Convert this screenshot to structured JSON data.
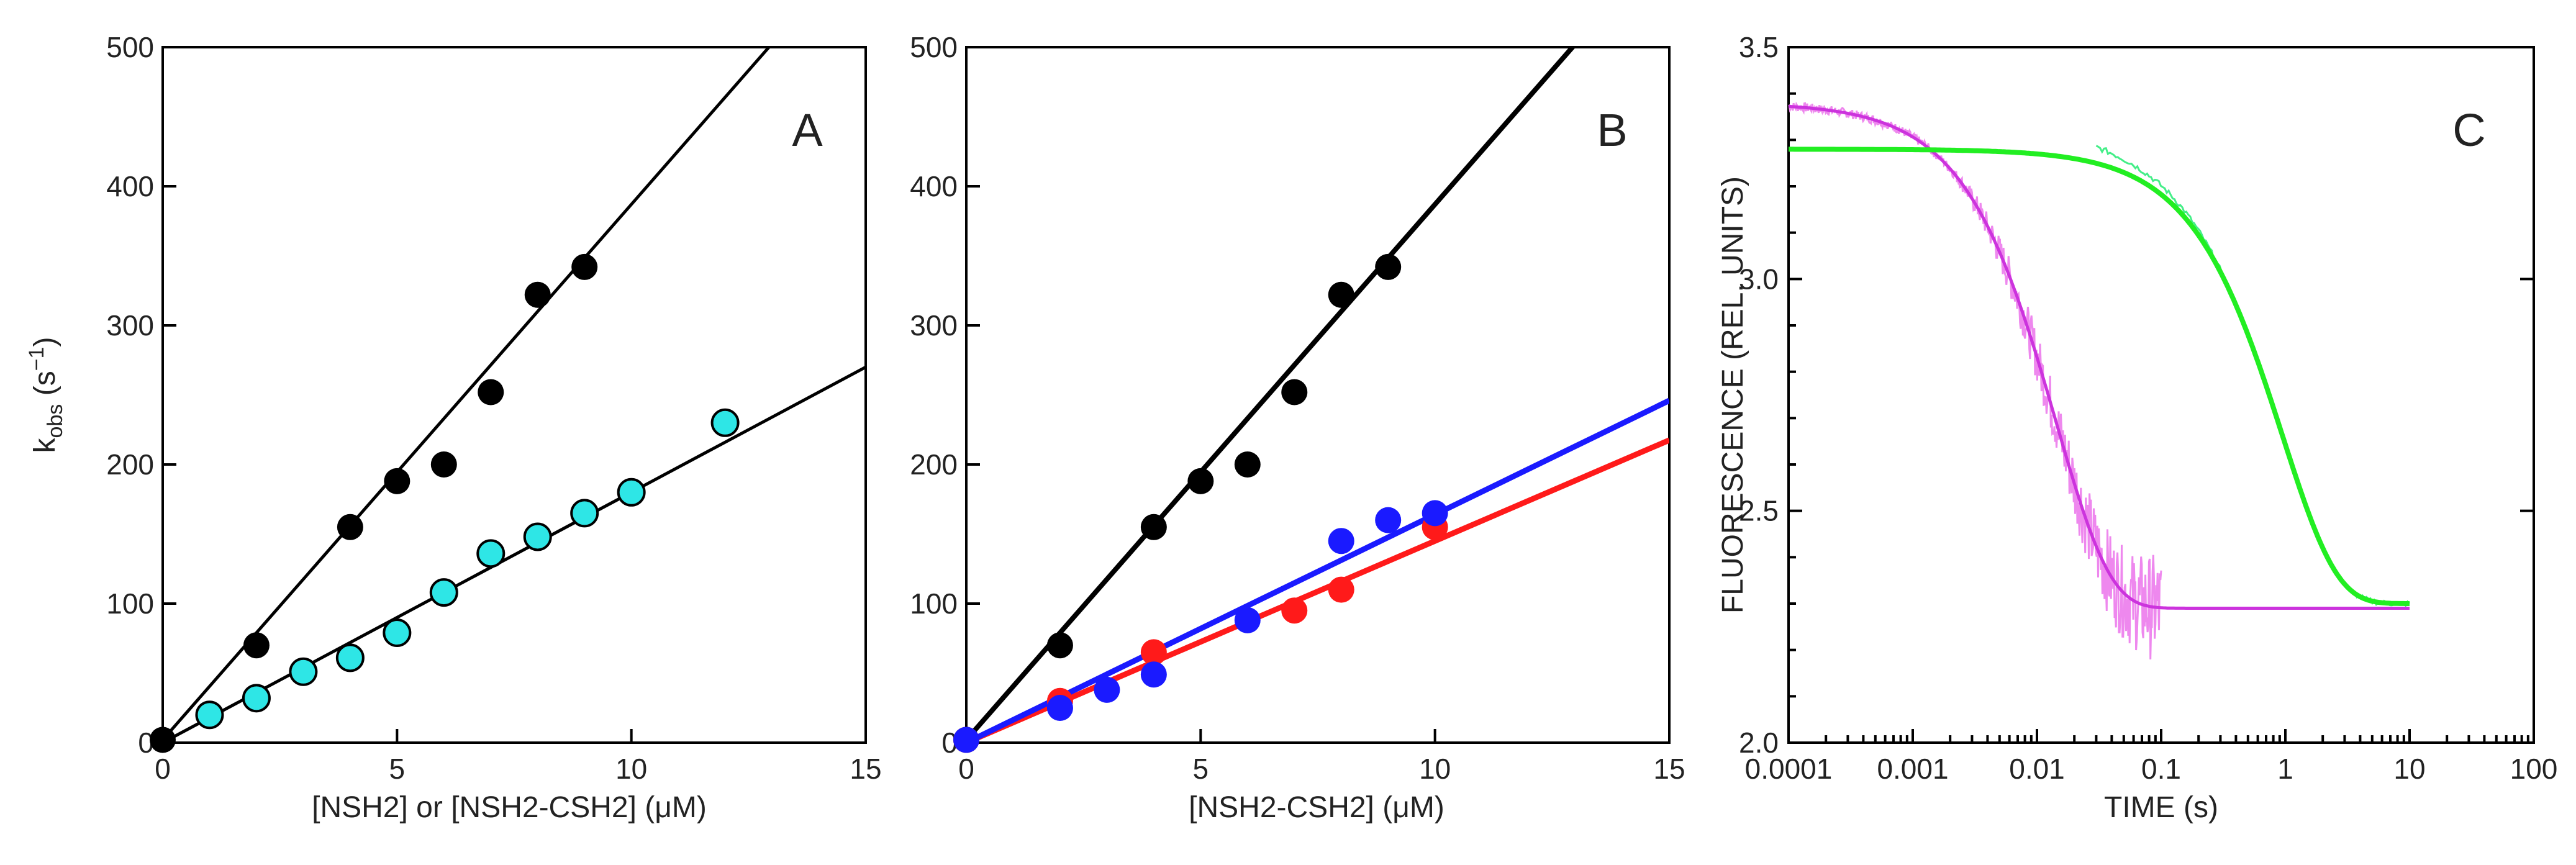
{
  "chart_data": [
    {
      "panel": "A",
      "type": "scatter",
      "title": "",
      "xlabel": "[NSH2] or [NSH2-CSH2] (μM)",
      "ylabel_main": "k",
      "ylabel_sub": "obs",
      "ylabel_suffix": " (s",
      "ylabel_sup": "−1",
      "ylabel_close": ")",
      "xlim": [
        0,
        15
      ],
      "ylim": [
        0,
        500
      ],
      "xticks": [
        0,
        5,
        10,
        15
      ],
      "yticks": [
        0,
        100,
        200,
        300,
        400,
        500
      ],
      "series": [
        {
          "name": "black",
          "color": "#000000",
          "marker": "filled",
          "x": [
            0,
            2,
            4,
            5,
            6,
            7,
            8,
            9
          ],
          "y": [
            2,
            70,
            155,
            188,
            200,
            252,
            322,
            342
          ],
          "fit": {
            "slope": 38.5,
            "intercept": 2
          }
        },
        {
          "name": "cyan",
          "color": "#2ee6e6",
          "marker": "outlined",
          "x": [
            1,
            2,
            3,
            4,
            5,
            6,
            7,
            8,
            9,
            10,
            12
          ],
          "y": [
            20,
            32,
            51,
            61,
            79,
            108,
            136,
            148,
            165,
            180,
            230
          ],
          "fit": {
            "slope": 18.0,
            "intercept": 0
          }
        }
      ]
    },
    {
      "panel": "B",
      "type": "scatter",
      "title": "",
      "xlabel": "[NSH2-CSH2] (μM)",
      "xlim": [
        0,
        15
      ],
      "ylim": [
        0,
        500
      ],
      "xticks": [
        0,
        5,
        10,
        15
      ],
      "yticks": [
        0,
        100,
        200,
        300,
        400,
        500
      ],
      "series": [
        {
          "name": "black",
          "color": "#000000",
          "marker": "filled",
          "x": [
            0,
            2,
            4,
            5,
            6,
            7,
            8,
            9
          ],
          "y": [
            2,
            70,
            155,
            188,
            200,
            252,
            322,
            342
          ],
          "fit": {
            "slope": 38.5,
            "intercept": 2
          }
        },
        {
          "name": "red",
          "color": "#ff1a1a",
          "marker": "filled",
          "x": [
            0,
            2,
            4,
            7,
            8,
            10
          ],
          "y": [
            2,
            30,
            65,
            95,
            110,
            155
          ],
          "fit": {
            "slope": 14.5,
            "intercept": 0
          }
        },
        {
          "name": "blue",
          "color": "#1a1aff",
          "marker": "filled",
          "x": [
            0,
            2,
            3,
            4,
            6,
            8,
            9,
            10
          ],
          "y": [
            2,
            25,
            38,
            49,
            88,
            145,
            160,
            165
          ],
          "fit": {
            "slope": 16.4,
            "intercept": 0
          }
        }
      ]
    },
    {
      "panel": "C",
      "type": "line",
      "title": "",
      "xlabel": "TIME (s)",
      "ylabel": "FLUORESCENCE (REL. UNITS)",
      "xscale": "log",
      "xlim": [
        0.0001,
        100
      ],
      "ylim": [
        2.0,
        3.5
      ],
      "xticks": [
        0.0001,
        0.001,
        0.01,
        0.1,
        1,
        10,
        100
      ],
      "xtick_labels": [
        "0.0001",
        "0.001",
        "0.01",
        "0.1",
        "1",
        "10",
        "100"
      ],
      "yticks": [
        2.0,
        2.5,
        3.0,
        3.5
      ],
      "ytick_labels": [
        "2.0",
        "2.5",
        "3.0",
        "3.5"
      ],
      "series": [
        {
          "name": "magenta",
          "color": "#cc33dd",
          "trace_color": "#ee88ee",
          "trace_x_range": [
            0.0001,
            0.1
          ],
          "fit": {
            "y0": 3.38,
            "yinf": 2.29,
            "k": 70
          }
        },
        {
          "name": "green",
          "color": "#22ee22",
          "trace_color": "#44ee88",
          "trace_x_range": [
            0.03,
            10
          ],
          "fit": {
            "y0": 3.28,
            "yinf": 2.3,
            "k": 1.05
          }
        }
      ]
    }
  ]
}
